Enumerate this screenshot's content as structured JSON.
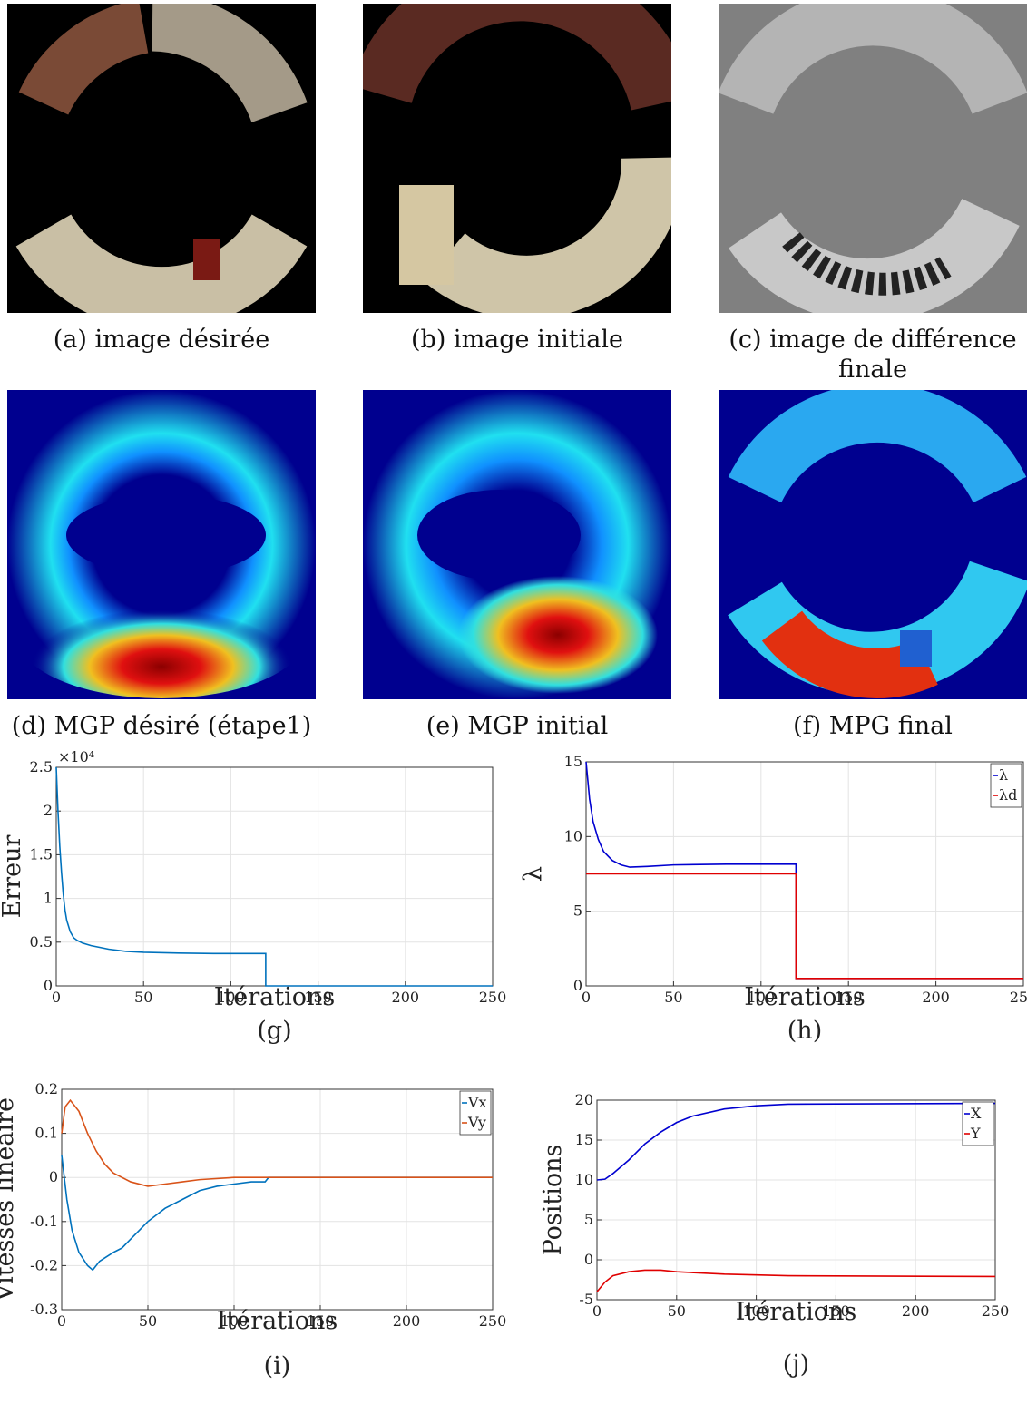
{
  "figures": [
    {
      "caption": "(a) image désirée"
    },
    {
      "caption": "(b) image initiale"
    },
    {
      "caption": "(c) image de différence finale"
    },
    {
      "caption": "(d) MGP désiré (étape1)"
    },
    {
      "caption": "(e) MGP initial"
    },
    {
      "caption": "(f) MPG final"
    }
  ],
  "chart_data": [
    {
      "type": "line",
      "caption": "(g)",
      "xlabel": "Itérations",
      "ylabel": "Erreur",
      "axis_exponent": "×10⁴",
      "xlim": [
        0,
        250
      ],
      "xticks": [
        0,
        50,
        100,
        150,
        200,
        250
      ],
      "ylim": [
        0,
        25000
      ],
      "yticks": [
        0,
        {
          "value": 5000,
          "label": "0.5"
        },
        {
          "value": 10000,
          "label": "1"
        },
        {
          "value": 15000,
          "label": "1.5"
        },
        {
          "value": 20000,
          "label": "2"
        },
        {
          "value": 25000,
          "label": "2.5"
        }
      ],
      "grid": true,
      "series": [
        {
          "color": "#0072bd",
          "x": [
            0,
            1,
            2,
            3,
            4,
            5,
            6,
            8,
            10,
            12,
            15,
            20,
            30,
            40,
            50,
            70,
            90,
            110,
            120,
            120,
            250
          ],
          "values": [
            25000,
            20000,
            16000,
            13000,
            10500,
            8700,
            7500,
            6200,
            5500,
            5200,
            4900,
            4600,
            4200,
            3950,
            3850,
            3750,
            3700,
            3700,
            3700,
            0,
            0
          ]
        }
      ]
    },
    {
      "type": "line",
      "caption": "(h)",
      "xlabel": "Itérations",
      "ylabel": "λ",
      "xlim": [
        0,
        250
      ],
      "xticks": [
        0,
        50,
        100,
        150,
        200,
        250
      ],
      "ylim": [
        0,
        15
      ],
      "yticks": [
        0,
        5,
        10,
        15
      ],
      "grid": true,
      "legend": "upper right",
      "series": [
        {
          "name": "λ",
          "color": "#0000d0",
          "x": [
            0,
            2,
            4,
            7,
            10,
            15,
            20,
            25,
            35,
            50,
            80,
            100,
            120,
            120,
            250
          ],
          "values": [
            15,
            12.5,
            11,
            9.8,
            9,
            8.4,
            8.1,
            7.95,
            8,
            8.1,
            8.15,
            8.15,
            8.15,
            0.5,
            0.5
          ]
        },
        {
          "name": "λd",
          "color": "#e00000",
          "x": [
            0,
            120,
            120,
            250
          ],
          "values": [
            7.5,
            7.5,
            0.5,
            0.5
          ]
        }
      ]
    },
    {
      "type": "line",
      "caption": "(i)",
      "xlabel": "Itérations",
      "ylabel": "Vitesses lineaire",
      "xlim": [
        0,
        250
      ],
      "xticks": [
        0,
        50,
        100,
        150,
        200,
        250
      ],
      "ylim": [
        -0.3,
        0.2
      ],
      "yticks": [
        -0.3,
        -0.2,
        -0.1,
        0,
        0.1,
        0.2
      ],
      "grid": true,
      "legend": "upper right",
      "series": [
        {
          "name": "Vx",
          "color": "#0072bd",
          "x": [
            0,
            3,
            6,
            10,
            15,
            18,
            22,
            26,
            30,
            35,
            40,
            45,
            50,
            60,
            70,
            80,
            90,
            100,
            110,
            118,
            120,
            250
          ],
          "values": [
            0.05,
            -0.05,
            -0.12,
            -0.17,
            -0.2,
            -0.21,
            -0.19,
            -0.18,
            -0.17,
            -0.16,
            -0.14,
            -0.12,
            -0.1,
            -0.07,
            -0.05,
            -0.03,
            -0.02,
            -0.015,
            -0.01,
            -0.01,
            0,
            0
          ]
        },
        {
          "name": "Vy",
          "color": "#d95319",
          "x": [
            0,
            2,
            5,
            10,
            15,
            20,
            25,
            30,
            40,
            50,
            60,
            70,
            80,
            100,
            120,
            250
          ],
          "values": [
            0.1,
            0.16,
            0.175,
            0.15,
            0.1,
            0.06,
            0.03,
            0.01,
            -0.01,
            -0.02,
            -0.015,
            -0.01,
            -0.005,
            0,
            0,
            0
          ]
        }
      ]
    },
    {
      "type": "line",
      "caption": "(j)",
      "xlabel": "Itérations",
      "ylabel": "Positions",
      "xlim": [
        0,
        250
      ],
      "xticks": [
        0,
        50,
        100,
        150,
        200,
        250
      ],
      "ylim": [
        -5,
        20
      ],
      "yticks": [
        -5,
        0,
        5,
        10,
        15,
        20
      ],
      "grid": true,
      "legend": "upper right",
      "series": [
        {
          "name": "X",
          "color": "#0000d0",
          "x": [
            0,
            5,
            10,
            20,
            30,
            40,
            50,
            60,
            80,
            100,
            120,
            250
          ],
          "values": [
            10,
            10.1,
            10.8,
            12.5,
            14.5,
            16,
            17.2,
            18,
            18.9,
            19.3,
            19.5,
            19.6
          ]
        },
        {
          "name": "Y",
          "color": "#e00000",
          "x": [
            0,
            5,
            10,
            20,
            30,
            40,
            50,
            80,
            120,
            250
          ],
          "values": [
            -4,
            -2.8,
            -2,
            -1.5,
            -1.3,
            -1.3,
            -1.5,
            -1.8,
            -2,
            -2.1
          ]
        }
      ]
    }
  ]
}
